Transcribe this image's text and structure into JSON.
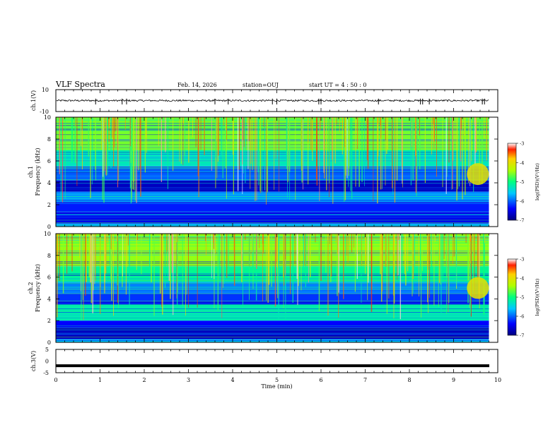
{
  "header": {
    "title": "VLF Spectra",
    "date": "Feb. 14, 2026",
    "station": "station=OUJ",
    "start_ut": "start  UT =   4 : 50 : 0"
  },
  "chart_data": [
    {
      "type": "line",
      "panel": "ch1-waveform",
      "ylabel": "ch.1(V)",
      "ylim": [
        -10,
        10
      ],
      "yticks": [
        "10",
        "-10"
      ],
      "xlim": [
        0,
        9.8
      ],
      "baseline": 0,
      "description_values": {
        "noise_amplitude": 0.8,
        "spike_amplitude": 3.5
      },
      "spikes_x": [
        0.9,
        1.5,
        1.6,
        3.6,
        3.9,
        4.9,
        5.0,
        5.95,
        6.0,
        7.3,
        8.25,
        8.3,
        8.45,
        9.65,
        9.7
      ]
    },
    {
      "type": "heatmap",
      "panel": "ch1-spectrogram",
      "ylabel": "ch.1\nFrequency (kHz)",
      "xlim": [
        0,
        10
      ],
      "ylim": [
        0,
        10
      ],
      "yticks": [
        "0",
        "2",
        "4",
        "6",
        "8",
        "10"
      ],
      "colorbar": {
        "label": "log(PSD)(V²/Hz)",
        "range": [
          -7,
          -3
        ],
        "ticks": [
          "-3",
          "-4",
          "-5",
          "-6",
          "-7"
        ]
      },
      "data_end_min": 9.8,
      "bands_khz": [
        {
          "from": 0,
          "to": 0.3,
          "level": -5.5
        },
        {
          "from": 0.3,
          "to": 1.3,
          "level": -6.5
        },
        {
          "from": 1.3,
          "to": 2.2,
          "level": -6.3
        },
        {
          "from": 2.2,
          "to": 3.2,
          "level": -5.8
        },
        {
          "from": 3.2,
          "to": 4.2,
          "level": -6.7
        },
        {
          "from": 4.2,
          "to": 5.5,
          "level": -6.0
        },
        {
          "from": 5.5,
          "to": 7.0,
          "level": -5.3
        },
        {
          "from": 7.0,
          "to": 10.0,
          "level": -4.6
        }
      ],
      "chorus_event": {
        "t_min": 9.3,
        "t_max": 9.8,
        "f_min_khz": 3.8,
        "f_max_khz": 5.8,
        "level": -4.0
      }
    },
    {
      "type": "heatmap",
      "panel": "ch2-spectrogram",
      "ylabel": "ch.2\nFrequency (kHz)",
      "xlim": [
        0,
        10
      ],
      "ylim": [
        0,
        10
      ],
      "yticks": [
        "0",
        "2",
        "4",
        "6",
        "8",
        "10"
      ],
      "colorbar": {
        "label": "log(PSD)(V²/Hz)",
        "range": [
          -7,
          -3
        ],
        "ticks": [
          "-3",
          "-4",
          "-5",
          "-6",
          "-7"
        ]
      },
      "data_end_min": 9.8,
      "bands_khz": [
        {
          "from": 0,
          "to": 0.3,
          "level": -5.6
        },
        {
          "from": 0.3,
          "to": 1.3,
          "level": -6.7
        },
        {
          "from": 1.3,
          "to": 2.0,
          "level": -6.4
        },
        {
          "from": 2.0,
          "to": 3.5,
          "level": -5.2
        },
        {
          "from": 3.5,
          "to": 4.5,
          "level": -6.2
        },
        {
          "from": 4.5,
          "to": 5.5,
          "level": -5.9
        },
        {
          "from": 5.5,
          "to": 7.0,
          "level": -5.1
        },
        {
          "from": 7.0,
          "to": 10.0,
          "level": -4.5
        }
      ],
      "chorus_event": {
        "t_min": 9.3,
        "t_max": 9.8,
        "f_min_khz": 4.0,
        "f_max_khz": 6.0,
        "level": -4.0
      }
    },
    {
      "type": "line",
      "panel": "ch3-waveform",
      "ylabel": "ch.3(V)",
      "ylim": [
        -5,
        5
      ],
      "yticks": [
        "5",
        "0",
        "-5"
      ],
      "xlim": [
        0,
        10
      ],
      "constant_value": -2.0,
      "xlabel": "Time (min)",
      "xticks": [
        "0",
        "1",
        "2",
        "3",
        "4",
        "5",
        "6",
        "7",
        "8",
        "9",
        "10"
      ]
    }
  ]
}
